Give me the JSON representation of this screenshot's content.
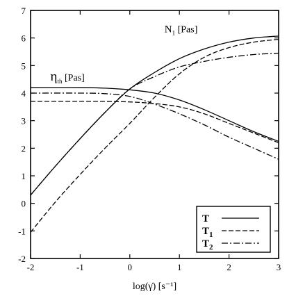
{
  "chart_data": {
    "type": "line",
    "title": "",
    "xlabel": "log(γ̇) [s⁻¹]",
    "ylabel": "",
    "xlim": [
      -2,
      3
    ],
    "ylim": [
      -2,
      7
    ],
    "xticks": [
      "-2",
      "-1",
      "0",
      "1",
      "2",
      "3"
    ],
    "yticks": [
      "-2",
      "-1",
      "0",
      "1",
      "2",
      "3",
      "4",
      "5",
      "6",
      "7"
    ],
    "grid": false,
    "legend_position": "bottom-right",
    "annotations": [
      {
        "main": "η",
        "sub": "th",
        "rest": " [Pas]",
        "x": -1.6,
        "y": 4.45
      },
      {
        "main": "N",
        "sub": "1",
        "rest": " [Pas]",
        "x": 0.7,
        "y": 6.2
      }
    ],
    "legend": [
      {
        "main": "T",
        "sub": "",
        "style": "solid"
      },
      {
        "main": "T",
        "sub": "1",
        "style": "dashed"
      },
      {
        "main": "T",
        "sub": "2",
        "style": "dashdot"
      }
    ],
    "series": [
      {
        "group": "eta_th",
        "legend_key": "T",
        "style": "solid",
        "x": [
          -2,
          -1,
          -0.5,
          0,
          0.5,
          1,
          1.5,
          2,
          2.5,
          3
        ],
        "y": [
          4.2,
          4.2,
          4.18,
          4.12,
          4.0,
          3.75,
          3.4,
          3.0,
          2.6,
          2.25
        ]
      },
      {
        "group": "eta_th",
        "legend_key": "T1",
        "style": "dashed",
        "x": [
          -2,
          -1,
          -0.5,
          0,
          0.5,
          1,
          1.5,
          2,
          2.5,
          3
        ],
        "y": [
          3.7,
          3.7,
          3.7,
          3.68,
          3.62,
          3.5,
          3.25,
          2.9,
          2.55,
          2.2
        ]
      },
      {
        "group": "eta_th",
        "legend_key": "T2",
        "style": "dashdot",
        "x": [
          -2,
          -1,
          -0.5,
          0,
          0.5,
          1,
          1.5,
          2,
          2.5,
          3
        ],
        "y": [
          4.0,
          4.0,
          3.98,
          3.88,
          3.6,
          3.25,
          2.85,
          2.4,
          2.0,
          1.6
        ]
      },
      {
        "group": "N1",
        "legend_key": "T",
        "style": "solid",
        "x": [
          -2,
          -1.5,
          -1,
          -0.5,
          0,
          0.5,
          1,
          1.5,
          2,
          2.5,
          3
        ],
        "y": [
          0.3,
          1.35,
          2.35,
          3.3,
          4.15,
          4.75,
          5.25,
          5.6,
          5.85,
          6.0,
          6.07
        ]
      },
      {
        "group": "N1",
        "legend_key": "T1",
        "style": "dashed",
        "x": [
          -2,
          -1.5,
          -1,
          -0.5,
          0,
          0.5,
          1,
          1.5,
          2,
          2.5,
          3
        ],
        "y": [
          -1.05,
          0.05,
          1.05,
          2.0,
          2.9,
          3.85,
          4.7,
          5.3,
          5.65,
          5.85,
          5.95
        ]
      },
      {
        "group": "N1",
        "legend_key": "T2",
        "style": "dashdot",
        "x": [
          -2,
          -1.5,
          -1,
          -0.5,
          0,
          0.5,
          1,
          1.5,
          2,
          2.5,
          3
        ],
        "y": [
          0.3,
          1.35,
          2.35,
          3.3,
          4.15,
          4.6,
          4.95,
          5.15,
          5.3,
          5.4,
          5.45
        ]
      }
    ]
  }
}
